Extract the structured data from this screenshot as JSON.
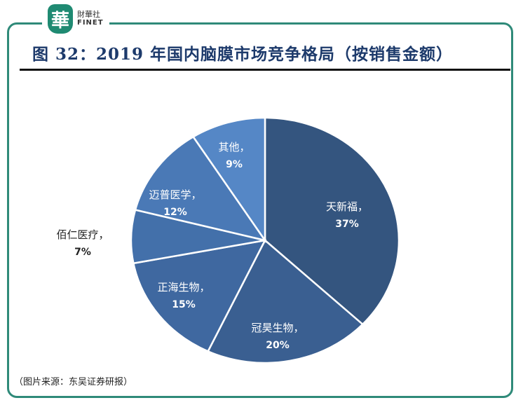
{
  "logo": {
    "badge": "華",
    "cn": "財華社",
    "en": "FINET"
  },
  "title": "图 32：2019 年国内脑膜市场竞争格局（按销售金额）",
  "source": "（图片来源：东吴证券研报）",
  "chart_data": {
    "type": "pie",
    "title": "图 32：2019 年国内脑膜市场竞争格局（按销售金额）",
    "start": "top",
    "direction": "clockwise",
    "slices": [
      {
        "label": "天新福，",
        "value": 37,
        "pct": "37%",
        "color": "#34557f"
      },
      {
        "label": "冠昊生物，",
        "value": 20,
        "pct": "20%",
        "color": "#3a5f91"
      },
      {
        "label": "正海生物，",
        "value": 15,
        "pct": "15%",
        "color": "#3f68a0"
      },
      {
        "label": "佰仁医疗，",
        "value": 7,
        "pct": "7%",
        "color": "#4370aa"
      },
      {
        "label": "迈普医学，",
        "value": 12,
        "pct": "12%",
        "color": "#4a79b6"
      },
      {
        "label": "其他，",
        "value": 9,
        "pct": "9%",
        "color": "#5587c6"
      }
    ]
  }
}
